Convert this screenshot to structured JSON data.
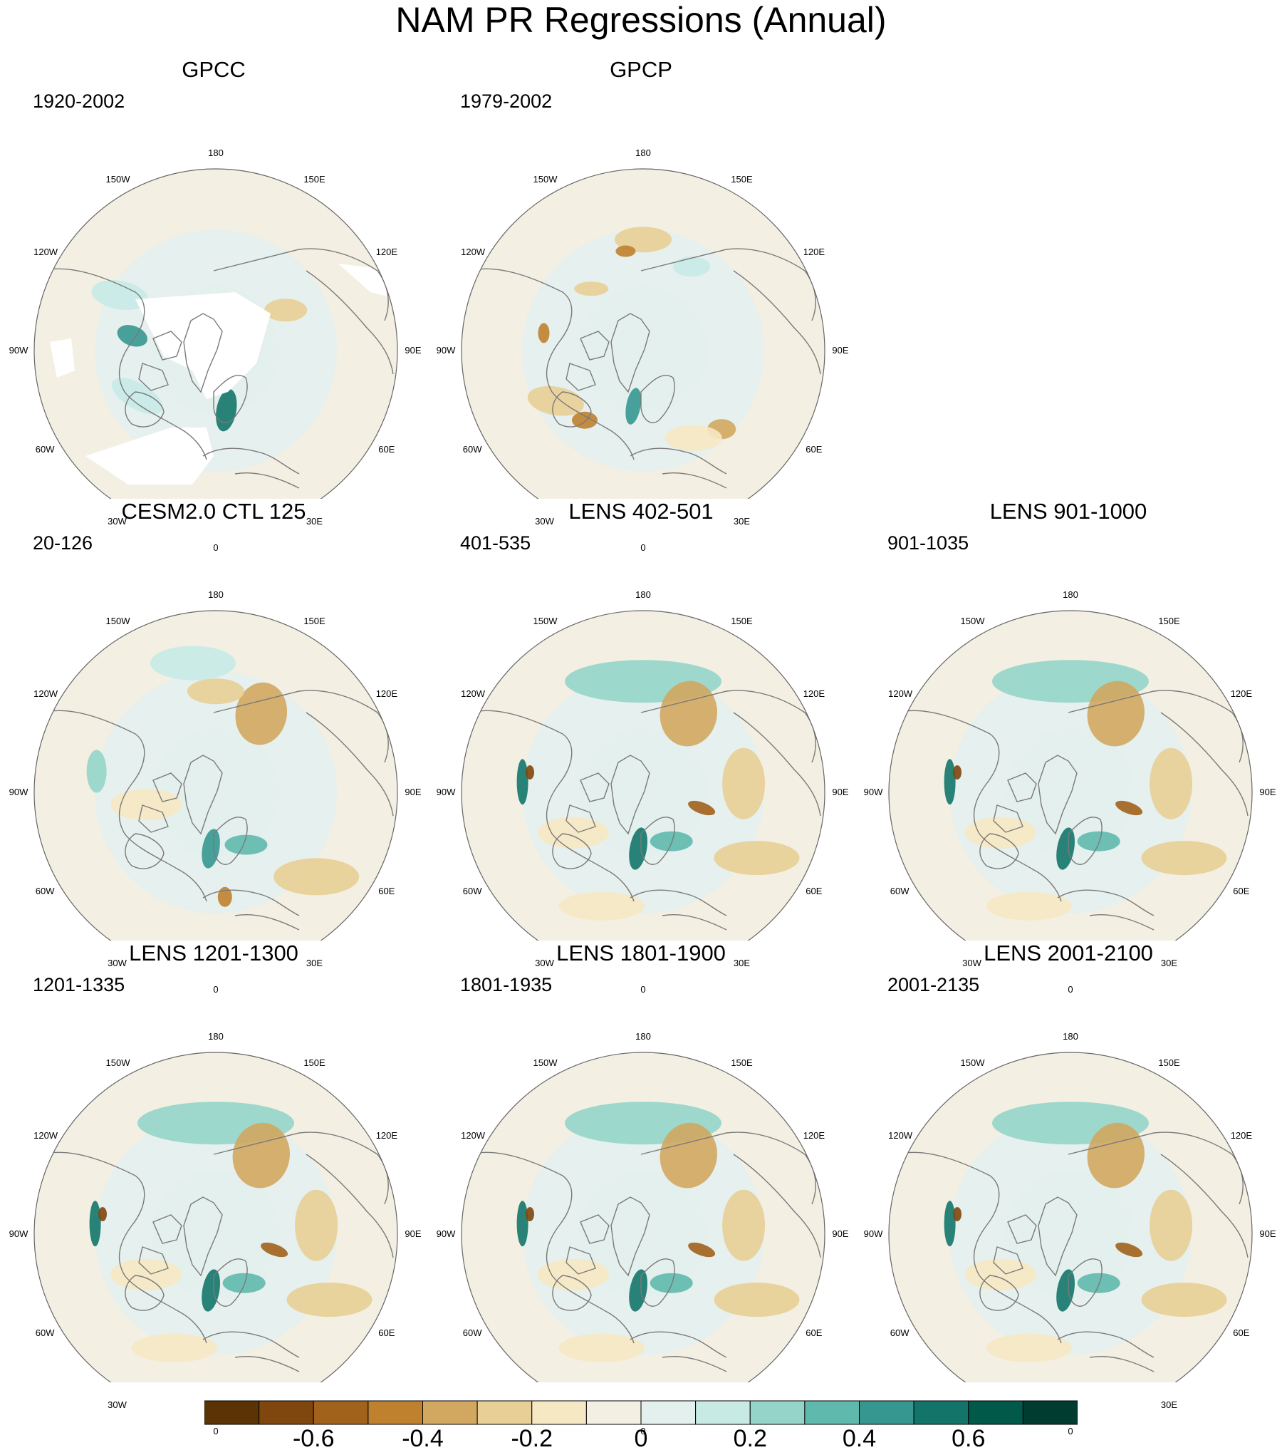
{
  "title": "NAM PR Regressions (Annual)",
  "longitude_labels": [
    "180",
    "150E",
    "120E",
    "90E",
    "60E",
    "30E",
    "0",
    "30W",
    "60W",
    "90W",
    "120W",
    "150W"
  ],
  "panels": [
    {
      "title": "GPCC",
      "period": "1920-2002",
      "masked_land": true,
      "theme": "gpcc"
    },
    {
      "title": "GPCP",
      "period": "1979-2002",
      "masked_land": false,
      "theme": "gpcp"
    },
    {
      "title": "CESM2.0 CTL 125",
      "period": "20-126",
      "masked_land": false,
      "theme": "model"
    },
    {
      "title": "LENS 402-501",
      "period": "401-535",
      "masked_land": false,
      "theme": "lens"
    },
    {
      "title": "LENS 901-1000",
      "period": "901-1035",
      "masked_land": false,
      "theme": "lens"
    },
    {
      "title": "LENS 1201-1300",
      "period": "1201-1335",
      "masked_land": false,
      "theme": "lens"
    },
    {
      "title": "LENS 1801-1900",
      "period": "1801-1935",
      "masked_land": false,
      "theme": "lens"
    },
    {
      "title": "LENS 2001-2100",
      "period": "2001-2135",
      "masked_land": false,
      "theme": "lens"
    }
  ],
  "colorbar": {
    "colors": [
      "#5b3305",
      "#7f460d",
      "#a1621b",
      "#bf812d",
      "#d2a75f",
      "#e8cf95",
      "#f6e8c3",
      "#f4efe3",
      "#e4f0ee",
      "#c7eae5",
      "#95d5c9",
      "#5fb9ad",
      "#35978f",
      "#137569",
      "#01594a",
      "#003c30"
    ],
    "tick_labels": [
      "-0.6",
      "-0.4",
      "-0.2",
      "0",
      "0.2",
      "0.4",
      "0.6"
    ]
  }
}
